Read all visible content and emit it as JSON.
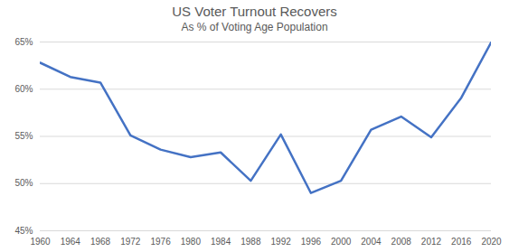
{
  "chart_data": {
    "type": "line",
    "title": "US Voter Turnout Recovers",
    "subtitle": "As % of Voting Age Population",
    "x": [
      1960,
      1964,
      1968,
      1972,
      1976,
      1980,
      1984,
      1988,
      1992,
      1996,
      2000,
      2004,
      2008,
      2012,
      2016,
      2020
    ],
    "values": [
      62.8,
      61.3,
      60.7,
      55.1,
      53.6,
      52.8,
      53.3,
      50.3,
      55.2,
      49.0,
      50.3,
      55.7,
      57.1,
      54.9,
      59.1,
      65.0
    ],
    "color": "#4472c4",
    "xlim": [
      1960,
      2020
    ],
    "xticks": [
      1960,
      1964,
      1968,
      1972,
      1976,
      1980,
      1984,
      1988,
      1992,
      1996,
      2000,
      2004,
      2008,
      2012,
      2016,
      2020
    ],
    "ylim": [
      45,
      65
    ],
    "yticks": [
      {
        "value": 45,
        "label": "45%"
      },
      {
        "value": 50,
        "label": "50%"
      },
      {
        "value": 55,
        "label": "55%"
      },
      {
        "value": 60,
        "label": "60%"
      },
      {
        "value": 65,
        "label": "65%"
      }
    ],
    "grid": true
  }
}
